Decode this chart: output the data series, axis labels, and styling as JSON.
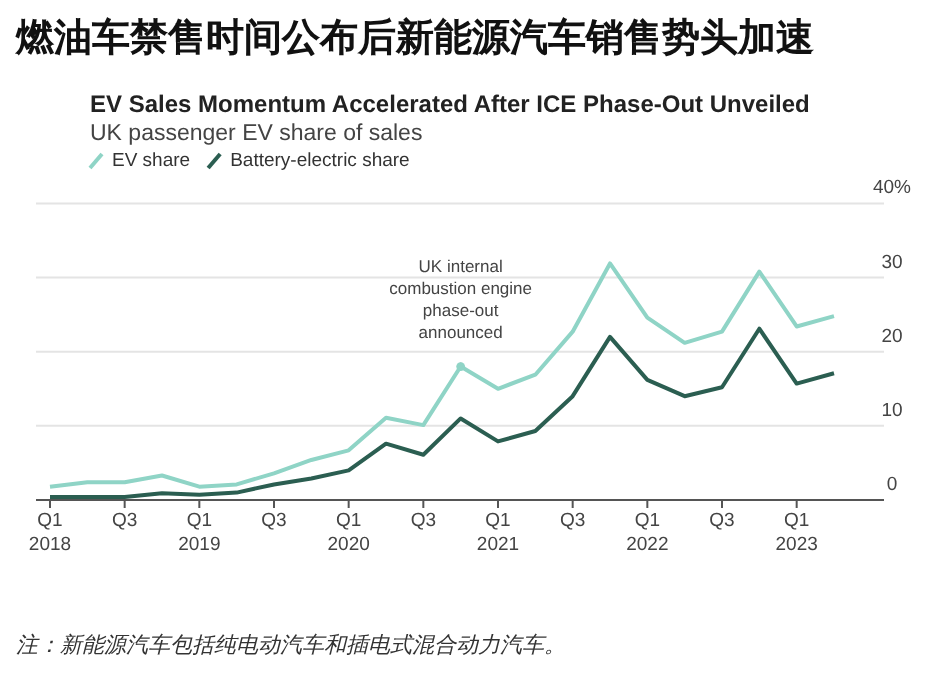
{
  "chart_data": {
    "type": "line",
    "title": "燃油车禁售时间公布后新能源汽车销售势头加速",
    "subtitle": "EV Sales Momentum Accelerated After ICE Phase-Out Unveiled",
    "ylabel": "UK passenger EV share of sales",
    "categories": [
      "Q1 2018",
      null,
      "Q3",
      null,
      "Q1 2019",
      null,
      "Q3",
      null,
      "Q1 2020",
      null,
      "Q3",
      null,
      "Q1 2021",
      null,
      "Q3",
      null,
      "Q1 2022",
      null,
      "Q3",
      null,
      "Q1 2023",
      null
    ],
    "series": [
      {
        "name": "EV share",
        "color": "#8fd4c6",
        "values": [
          1.8,
          2.4,
          2.4,
          3.3,
          1.8,
          2.1,
          3.6,
          5.4,
          6.7,
          11.1,
          10.1,
          18.0,
          15.0,
          16.9,
          22.7,
          31.9,
          24.6,
          21.2,
          22.7,
          30.8,
          23.4,
          24.8
        ]
      },
      {
        "name": "Battery-electric share",
        "color": "#2b5e51",
        "values": [
          0.4,
          0.4,
          0.4,
          0.9,
          0.7,
          1.0,
          2.1,
          2.9,
          4.0,
          7.6,
          6.1,
          11.0,
          7.9,
          9.3,
          14.0,
          22.0,
          16.2,
          14.0,
          15.2,
          23.1,
          15.7,
          17.1
        ]
      }
    ],
    "ylim": [
      0,
      40
    ],
    "yticks": [
      0,
      10,
      20,
      30,
      {
        "value": 40,
        "label": "40%"
      }
    ],
    "grid": "y",
    "legend": "top left",
    "marker": "none",
    "line_style": "solid",
    "annotations": [
      {
        "text": "UK internal combustion engine phase-out announced",
        "y": 18.0
      },
      "注：新能源汽车包括纯电动汽车和插电式混合动力汽车。"
    ]
  }
}
